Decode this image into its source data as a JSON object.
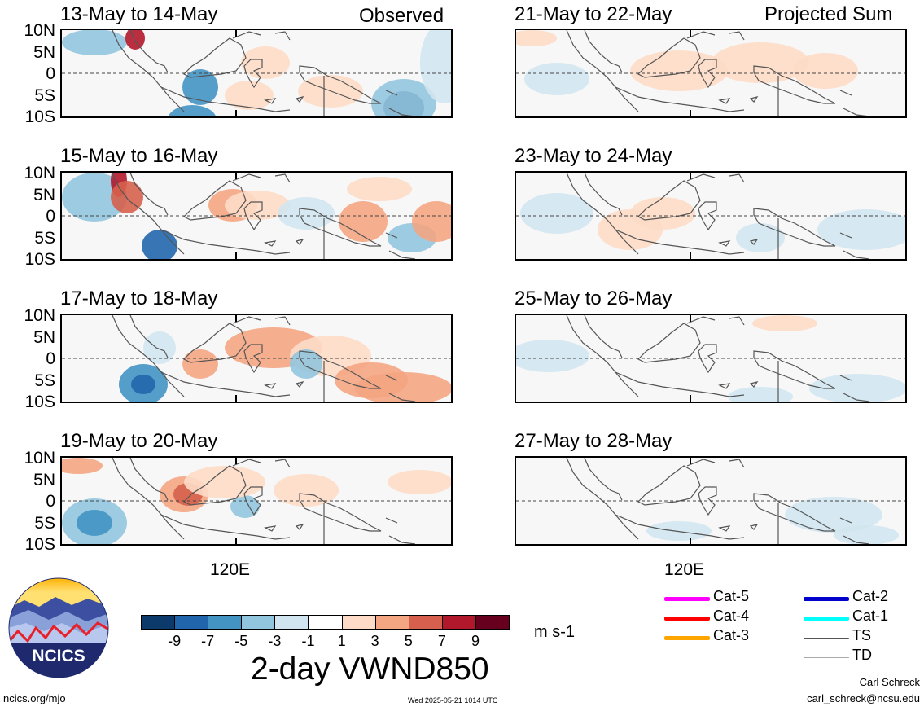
{
  "panels_left": {
    "header_right": "Observed",
    "rows": [
      {
        "title": "13-May to 14-May"
      },
      {
        "title": "15-May to 16-May"
      },
      {
        "title": "17-May to 18-May"
      },
      {
        "title": "19-May to 20-May"
      }
    ]
  },
  "panels_right": {
    "header_right": "Projected Sum",
    "rows": [
      {
        "title": "21-May to 22-May"
      },
      {
        "title": "23-May to 24-May"
      },
      {
        "title": "25-May to 26-May"
      },
      {
        "title": "27-May to 28-May"
      }
    ]
  },
  "lat_labels": [
    "10N",
    "5N",
    "0",
    "5S",
    "10S"
  ],
  "lon_label": "120E",
  "colorbar": {
    "colors": [
      "#0b3a6b",
      "#2166ac",
      "#4393c3",
      "#92c5de",
      "#d1e5f0",
      "#ffffff",
      "#fddbc7",
      "#f4a582",
      "#d6604d",
      "#b2182b",
      "#67001f"
    ],
    "labels": [
      "-9",
      "-7",
      "-5",
      "-3",
      "-1",
      "1",
      "3",
      "5",
      "7",
      "9"
    ],
    "units": "m s-1",
    "title": "2-day VWND850"
  },
  "storm_legend": [
    {
      "label": "Cat-5",
      "color": "#ff00ff"
    },
    {
      "label": "Cat-4",
      "color": "#ff0000"
    },
    {
      "label": "Cat-3",
      "color": "#ffa500"
    },
    {
      "label": "Cat-2",
      "color": "#0000cc"
    },
    {
      "label": "Cat-1",
      "color": "#00ffff"
    },
    {
      "label": "TS",
      "color": "#555555"
    },
    {
      "label": "TD",
      "color": "#aaaaaa"
    }
  ],
  "logo": {
    "text": "NCICS"
  },
  "footer": {
    "site": "ncics.org/mjo",
    "timestamp": "Wed 2025-05-21 1014 UTC",
    "author": "Carl Schreck",
    "email": "carl_schreck@ncsu.edu"
  }
}
